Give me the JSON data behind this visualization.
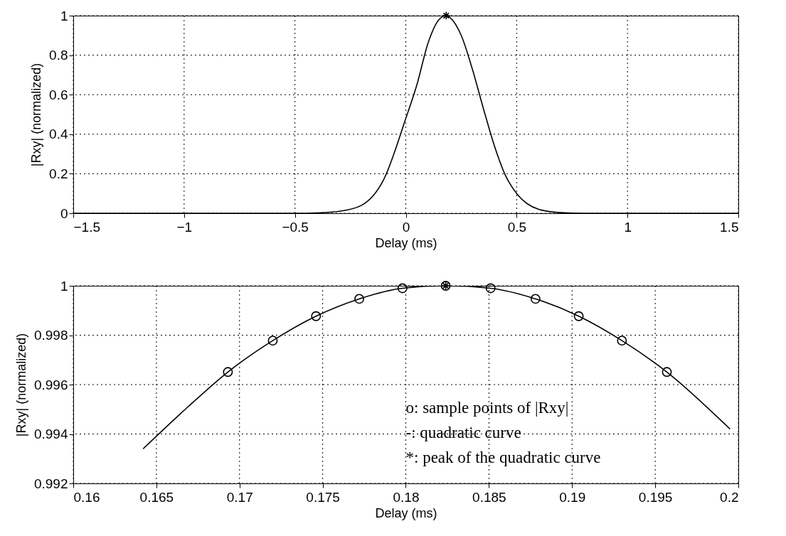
{
  "chart_data": [
    {
      "type": "line",
      "xlabel": "Delay (ms)",
      "ylabel": "|Rxy| (normalized)",
      "xlim": [
        -1.5,
        1.5
      ],
      "xticks": [
        -1.5,
        -1,
        -0.5,
        0,
        0.5,
        1,
        1.5
      ],
      "ylim": [
        0,
        1
      ],
      "yticks": [
        0,
        0.2,
        0.4,
        0.6,
        0.8,
        1
      ],
      "grid": true,
      "series": [
        {
          "type": "line",
          "color": "#000000",
          "x": [
            -1.5,
            -1,
            -0.5,
            -0.4,
            -0.3,
            -0.2,
            -0.1,
            0,
            0.05,
            0.1,
            0.15,
            0.182,
            0.2,
            0.25,
            0.3,
            0.35,
            0.4,
            0.45,
            0.5,
            0.6,
            0.7,
            0.8,
            1,
            1.5
          ],
          "values": [
            0,
            0,
            0,
            0.002,
            0.01,
            0.04,
            0.17,
            0.48,
            0.65,
            0.86,
            0.98,
            1,
            0.99,
            0.9,
            0.73,
            0.53,
            0.34,
            0.19,
            0.1,
            0.02,
            0.003,
            0,
            0,
            0
          ]
        },
        {
          "type": "scatter",
          "marker": "cross",
          "color": "#000000",
          "x": [
            0.182
          ],
          "values": [
            1
          ]
        }
      ]
    },
    {
      "type": "line",
      "xlabel": "Delay (ms)",
      "ylabel": "|Rxy| (normalized)",
      "xlim": [
        0.16,
        0.2
      ],
      "xticks": [
        0.16,
        0.165,
        0.17,
        0.175,
        0.18,
        0.185,
        0.19,
        0.195,
        0.2
      ],
      "ylim": [
        0.992,
        1
      ],
      "yticks": [
        0.992,
        0.994,
        0.996,
        0.998,
        1
      ],
      "grid": true,
      "annotations": [
        "o: sample points of |Rxy|",
        "-:  quadratic curve",
        "*: peak of the quadratic curve"
      ],
      "series": [
        {
          "type": "line",
          "color": "#000000",
          "x": [
            0.1642,
            0.1669,
            0.1693,
            0.172,
            0.1746,
            0.1772,
            0.1798,
            0.1824,
            0.1851,
            0.1878,
            0.1904,
            0.193,
            0.1957,
            0.1995
          ],
          "values": [
            0.9934,
            0.9951,
            0.99651,
            0.99778,
            0.99877,
            0.99947,
            0.9999,
            1,
            0.9999,
            0.99947,
            0.99877,
            0.99778,
            0.99651,
            0.9942
          ]
        },
        {
          "type": "scatter",
          "marker": "circle",
          "color": "#000000",
          "x": [
            0.1693,
            0.172,
            0.1746,
            0.1772,
            0.1798,
            0.1824,
            0.1851,
            0.1878,
            0.1904,
            0.193,
            0.1957
          ],
          "values": [
            0.99651,
            0.99778,
            0.99877,
            0.99947,
            0.9999,
            1,
            0.9999,
            0.99947,
            0.99877,
            0.99778,
            0.99651
          ]
        },
        {
          "type": "scatter",
          "marker": "cross",
          "color": "#000000",
          "x": [
            0.1824
          ],
          "values": [
            1
          ]
        }
      ]
    }
  ]
}
